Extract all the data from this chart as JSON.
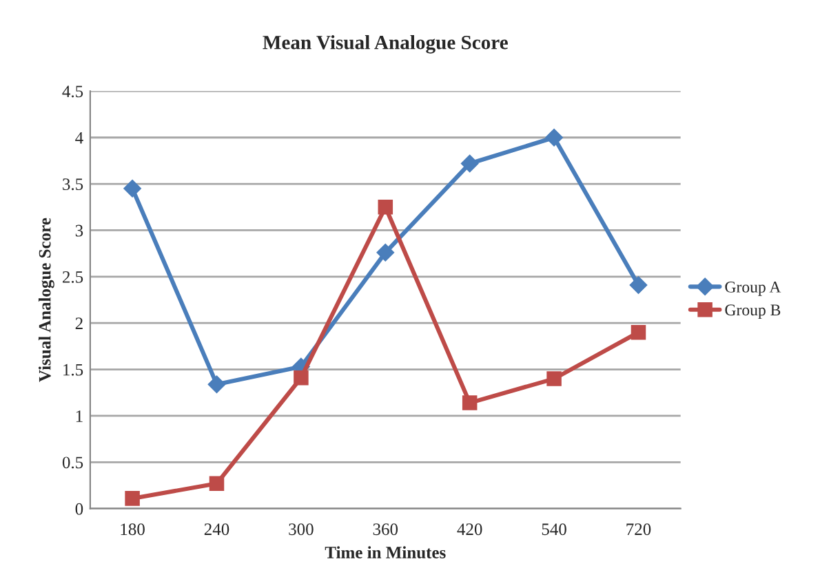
{
  "chart_data": {
    "type": "line",
    "title": "Mean Visual Analogue Score",
    "xlabel": "Time in Minutes",
    "ylabel": "Visual Analogue Score",
    "categories": [
      "180",
      "240",
      "300",
      "360",
      "420",
      "540",
      "720"
    ],
    "series": [
      {
        "name": "Group A",
        "color": "#4a7ebb",
        "marker": "diamond",
        "values": [
          3.45,
          1.34,
          1.53,
          2.76,
          3.72,
          4.0,
          2.41
        ]
      },
      {
        "name": "Group B",
        "color": "#be4b48",
        "marker": "square",
        "values": [
          0.11,
          0.27,
          1.41,
          3.25,
          1.14,
          1.4,
          1.9
        ]
      }
    ],
    "ylim": [
      0,
      4.5
    ],
    "yticks": [
      0,
      0.5,
      1,
      1.5,
      2,
      2.5,
      3,
      3.5,
      4,
      4.5
    ],
    "grid": "y",
    "legend": "right",
    "line_style": "solid"
  }
}
